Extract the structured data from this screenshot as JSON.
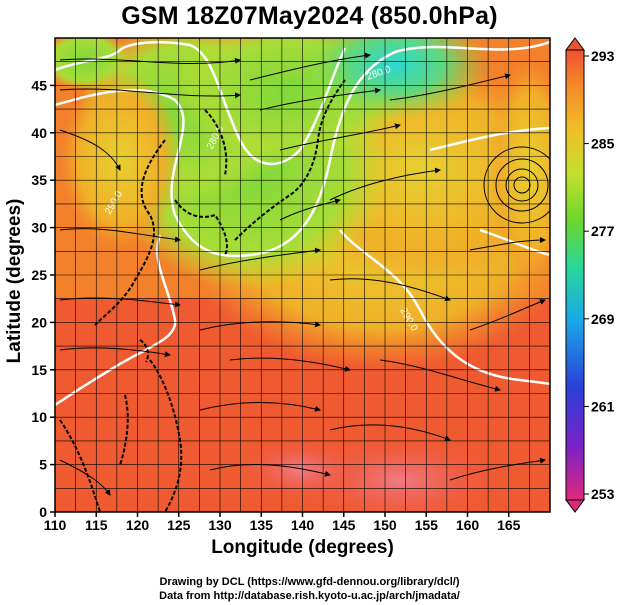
{
  "title": "GSM 18Z07May2024 (850.0hPa)",
  "map": {
    "xlabel": "Longitude (degrees)",
    "ylabel": "Latitude  (degrees)",
    "x_range": [
      110,
      170
    ],
    "y_range": [
      0,
      50
    ],
    "x_ticks": [
      "110",
      "115",
      "120",
      "125",
      "130",
      "135",
      "140",
      "145",
      "150",
      "155",
      "160",
      "165"
    ],
    "y_ticks": [
      "0",
      "5",
      "10",
      "15",
      "20",
      "25",
      "30",
      "35",
      "40",
      "45"
    ],
    "contour_labels": [
      "280.0",
      "280.0",
      "290.0",
      "290.0"
    ]
  },
  "colorbar": {
    "ticks": [
      "293",
      "285",
      "277",
      "269",
      "261",
      "253"
    ],
    "range": [
      253,
      293
    ],
    "colors": [
      "#e0287a",
      "#7a22c8",
      "#2a40d8",
      "#1aa8e8",
      "#2ad898",
      "#6cd62c",
      "#c0e030",
      "#f0c028",
      "#f48a28",
      "#ee5232"
    ]
  },
  "credits": {
    "line1": "Drawing by DCL (https://www.gfd-dennou.org/library/dcl/)",
    "line2": "Data from http://database.rish.kyoto-u.ac.jp/arch/jmadata/"
  }
}
